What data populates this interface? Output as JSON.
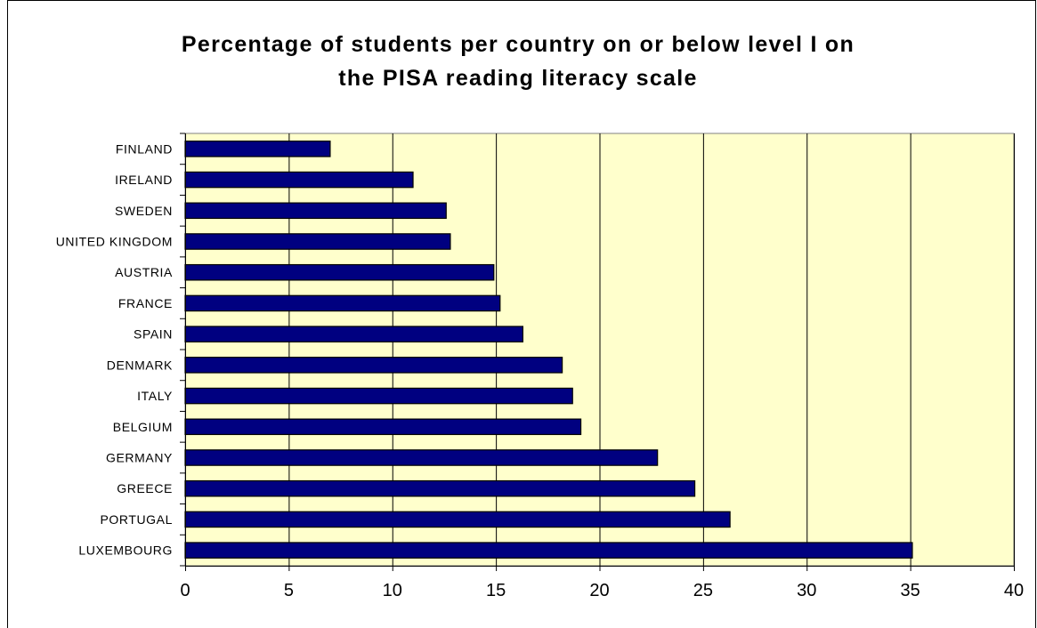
{
  "chart_data": {
    "type": "bar",
    "orientation": "horizontal",
    "title_lines": [
      "Percentage of students per country on or below level I on",
      "the PISA reading literacy scale"
    ],
    "xlabel": "",
    "ylabel": "",
    "categories": [
      "FINLAND",
      "IRELAND",
      "SWEDEN",
      "UNITED KINGDOM",
      "AUSTRIA",
      "FRANCE",
      "SPAIN",
      "DENMARK",
      "ITALY",
      "BELGIUM",
      "GERMANY",
      "GREECE",
      "PORTUGAL",
      "LUXEMBOURG"
    ],
    "values": [
      7.0,
      11.0,
      12.6,
      12.8,
      14.9,
      15.2,
      16.3,
      18.2,
      18.7,
      19.1,
      22.8,
      24.6,
      26.3,
      35.1
    ],
    "xlim": [
      0,
      40
    ],
    "xticks": [
      0,
      5,
      10,
      15,
      20,
      25,
      30,
      35,
      40
    ],
    "grid": true,
    "legend": "none",
    "colors": {
      "bar_fill": "#000080",
      "bar_stroke": "#000000",
      "plot_background": "#FFFFCC",
      "gridline": "#000000"
    }
  }
}
